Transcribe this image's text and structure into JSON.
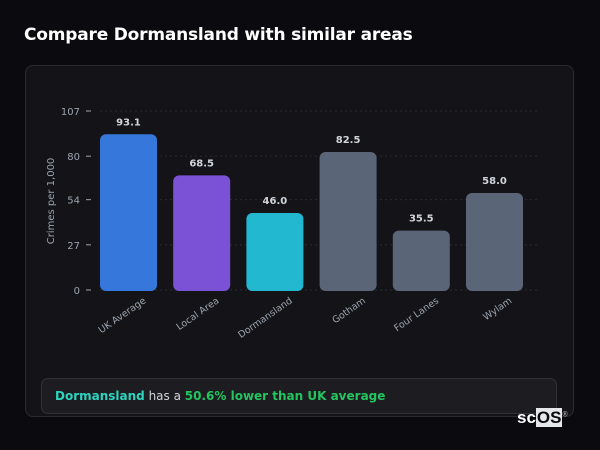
{
  "title": "Compare Dormansland with similar areas",
  "chart_data": {
    "type": "bar",
    "categories": [
      "UK Average",
      "Local Area",
      "Dormansland",
      "Gotham",
      "Four Lanes",
      "Wylam"
    ],
    "values": [
      93.1,
      68.5,
      46.0,
      82.5,
      35.5,
      58.0
    ],
    "value_labels": [
      "93.1",
      "68.5",
      "46.0",
      "82.5",
      "35.5",
      "58.0"
    ],
    "colors": [
      "#3577db",
      "#7b52d6",
      "#22b8d0",
      "#5a6678",
      "#5a6678",
      "#5a6678"
    ],
    "ylabel": "Crimes per 1,000",
    "xlabel": "",
    "yticks": [
      0,
      27,
      54,
      80,
      107
    ],
    "ylim": [
      0,
      107
    ],
    "grid": true
  },
  "footer": {
    "area": "Dormansland",
    "text": " has a ",
    "comparison": "50.6% lower than UK average",
    "area_color": "#2dd4bf",
    "comparison_color": "#22c55e"
  },
  "logo": {
    "text_a": "sc",
    "text_b": "OS",
    "mark": "®"
  }
}
